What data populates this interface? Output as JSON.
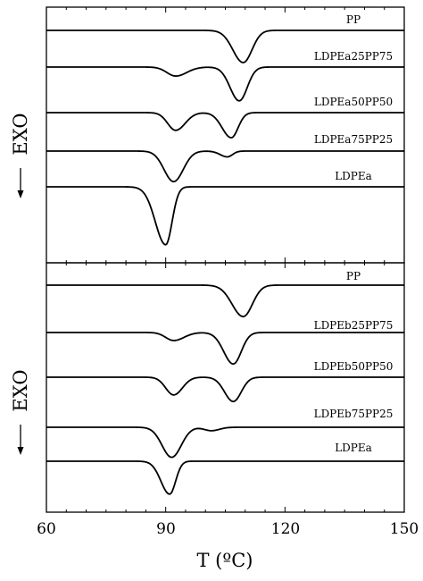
{
  "chart_data": [
    {
      "type": "line",
      "panel": "top",
      "xlabel": "T (ºC)",
      "ylabel": "EXO",
      "xlim": [
        60,
        150
      ],
      "x_ticks": [
        60,
        90,
        120,
        150
      ],
      "series": [
        {
          "name": "PP",
          "baseline": 0,
          "peaks": [
            {
              "t": 109.5,
              "depth": 1.0,
              "wl": 2.6,
              "wr": 2.2
            }
          ]
        },
        {
          "name": "LDPEa25PP75",
          "baseline": 1,
          "peaks": [
            {
              "t": 92.5,
              "depth": 0.28,
              "wl": 2.2,
              "wr": 2.8
            },
            {
              "t": 108.5,
              "depth": 1.05,
              "wl": 2.3,
              "wr": 2.0
            }
          ]
        },
        {
          "name": "LDPEa50PP50",
          "baseline": 2,
          "peaks": [
            {
              "t": 92.5,
              "depth": 0.55,
              "wl": 2.0,
              "wr": 2.4
            },
            {
              "t": 106.5,
              "depth": 0.78,
              "wl": 2.3,
              "wr": 1.7
            }
          ]
        },
        {
          "name": "LDPEa75PP25",
          "baseline": 3,
          "peaks": [
            {
              "t": 92.0,
              "depth": 0.95,
              "wl": 2.4,
              "wr": 2.4
            },
            {
              "t": 105.5,
              "depth": 0.18,
              "wl": 1.8,
              "wr": 1.3
            }
          ]
        },
        {
          "name": "LDPEa",
          "baseline": 4,
          "peaks": [
            {
              "t": 90.0,
              "depth": 1.8,
              "wl": 2.6,
              "wr": 1.6
            }
          ]
        }
      ]
    },
    {
      "type": "line",
      "panel": "bottom",
      "xlabel": "T (ºC)",
      "ylabel": "EXO",
      "xlim": [
        60,
        150
      ],
      "x_ticks": [
        60,
        90,
        120,
        150
      ],
      "series": [
        {
          "name": "PP",
          "baseline": 0,
          "peaks": [
            {
              "t": 109.5,
              "depth": 1.1,
              "wl": 2.8,
              "wr": 2.3
            }
          ]
        },
        {
          "name": "LDPEb25PP75",
          "baseline": 1,
          "peaks": [
            {
              "t": 92.0,
              "depth": 0.28,
              "wl": 2.0,
              "wr": 2.6
            },
            {
              "t": 107.0,
              "depth": 1.1,
              "wl": 2.4,
              "wr": 2.0
            }
          ]
        },
        {
          "name": "LDPEb50PP50",
          "baseline": 2,
          "peaks": [
            {
              "t": 92.0,
              "depth": 0.62,
              "wl": 2.0,
              "wr": 2.2
            },
            {
              "t": 107.0,
              "depth": 0.85,
              "wl": 2.2,
              "wr": 2.0
            }
          ]
        },
        {
          "name": "LDPEb75PP25",
          "baseline": 3,
          "peaks": [
            {
              "t": 91.5,
              "depth": 1.05,
              "wl": 2.4,
              "wr": 2.4
            },
            {
              "t": 101.5,
              "depth": 0.12,
              "wl": 1.8,
              "wr": 2.0
            }
          ]
        },
        {
          "name": "LDPEa",
          "baseline": 4,
          "peaks": [
            {
              "t": 91.0,
              "depth": 1.15,
              "wl": 2.2,
              "wr": 1.5
            }
          ]
        }
      ]
    }
  ],
  "axis": {
    "xlabel": "T (ºC)",
    "ylabel": "EXO",
    "tick_labels": [
      "60",
      "90",
      "120",
      "150"
    ]
  }
}
